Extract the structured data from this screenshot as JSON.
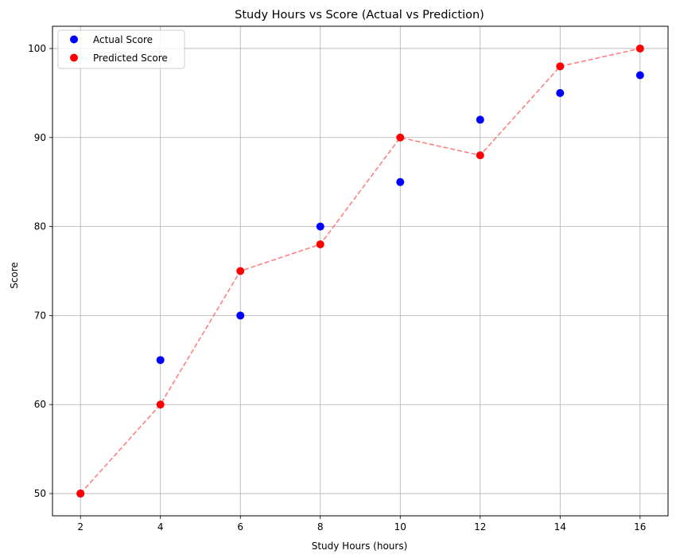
{
  "chart_data": {
    "type": "scatter",
    "title": "Study Hours vs Score (Actual vs Prediction)",
    "xlabel": "Study Hours (hours)",
    "ylabel": "Score",
    "xlim": [
      1.3,
      16.7
    ],
    "ylim": [
      47.5,
      102.5
    ],
    "xticks": [
      2,
      4,
      6,
      8,
      10,
      12,
      14,
      16
    ],
    "yticks": [
      50,
      60,
      70,
      80,
      90,
      100
    ],
    "grid": true,
    "legend_position": "top-left",
    "series": [
      {
        "name": "Actual Score",
        "kind": "scatter",
        "color": "#0000ff",
        "points": [
          [
            2,
            50
          ],
          [
            4,
            65
          ],
          [
            6,
            70
          ],
          [
            8,
            80
          ],
          [
            10,
            85
          ],
          [
            12,
            92
          ],
          [
            14,
            95
          ],
          [
            16,
            97
          ]
        ]
      },
      {
        "name": "Predicted Score",
        "kind": "scatter+dashed-line",
        "color": "#ff0000",
        "line_color": "#ff8080",
        "points": [
          [
            2,
            50
          ],
          [
            4,
            60
          ],
          [
            6,
            75
          ],
          [
            8,
            78
          ],
          [
            10,
            90
          ],
          [
            12,
            88
          ],
          [
            14,
            98
          ],
          [
            16,
            100
          ]
        ]
      }
    ]
  }
}
